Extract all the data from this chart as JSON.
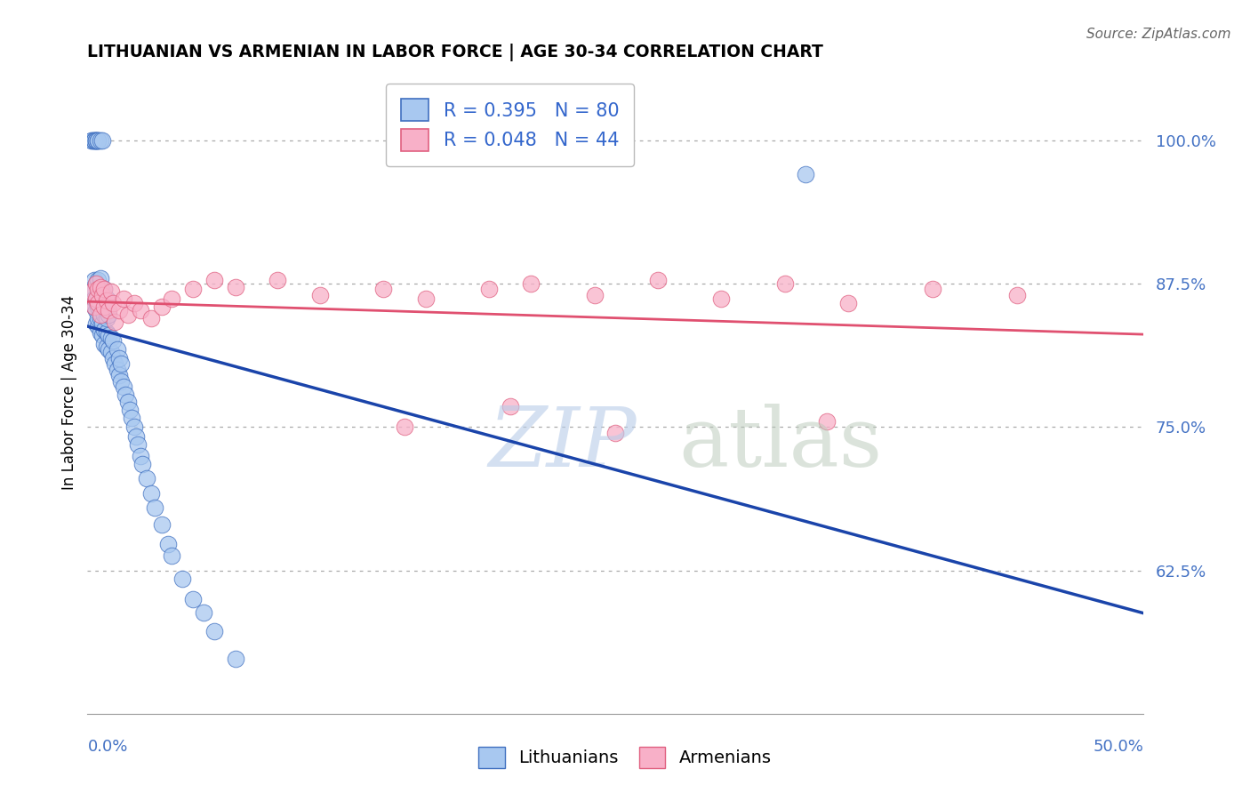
{
  "title": "LITHUANIAN VS ARMENIAN IN LABOR FORCE | AGE 30-34 CORRELATION CHART",
  "source": "Source: ZipAtlas.com",
  "ylabel": "In Labor Force | Age 30-34",
  "ytick_labels": [
    "62.5%",
    "75.0%",
    "87.5%",
    "100.0%"
  ],
  "ytick_values": [
    0.625,
    0.75,
    0.875,
    1.0
  ],
  "xlim": [
    0.0,
    0.5
  ],
  "ylim": [
    0.5,
    1.06
  ],
  "R_blue": 0.395,
  "N_blue": 80,
  "R_pink": 0.048,
  "N_pink": 44,
  "blue_scatter_color": "#a8c8f0",
  "blue_scatter_edge": "#4070c0",
  "pink_scatter_color": "#f8b0c8",
  "pink_scatter_edge": "#e06080",
  "blue_line_color": "#1a44aa",
  "pink_line_color": "#e05070",
  "lit_x": [
    0.002,
    0.003,
    0.003,
    0.003,
    0.004,
    0.004,
    0.004,
    0.004,
    0.005,
    0.005,
    0.005,
    0.005,
    0.005,
    0.006,
    0.006,
    0.006,
    0.006,
    0.006,
    0.007,
    0.007,
    0.007,
    0.007,
    0.008,
    0.008,
    0.008,
    0.008,
    0.008,
    0.009,
    0.009,
    0.009,
    0.009,
    0.01,
    0.01,
    0.01,
    0.011,
    0.011,
    0.012,
    0.012,
    0.013,
    0.014,
    0.014,
    0.015,
    0.015,
    0.016,
    0.016,
    0.017,
    0.018,
    0.019,
    0.02,
    0.021,
    0.022,
    0.023,
    0.024,
    0.025,
    0.026,
    0.028,
    0.03,
    0.032,
    0.035,
    0.038,
    0.04,
    0.045,
    0.05,
    0.055,
    0.06,
    0.07,
    0.002,
    0.002,
    0.003,
    0.003,
    0.003,
    0.004,
    0.004,
    0.004,
    0.005,
    0.005,
    0.005,
    0.006,
    0.007,
    0.34
  ],
  "lit_y": [
    0.87,
    0.855,
    0.862,
    0.878,
    0.84,
    0.852,
    0.86,
    0.875,
    0.838,
    0.845,
    0.855,
    0.865,
    0.878,
    0.832,
    0.845,
    0.858,
    0.868,
    0.88,
    0.83,
    0.84,
    0.852,
    0.868,
    0.822,
    0.835,
    0.848,
    0.858,
    0.87,
    0.82,
    0.832,
    0.845,
    0.862,
    0.818,
    0.83,
    0.848,
    0.815,
    0.828,
    0.81,
    0.825,
    0.805,
    0.8,
    0.818,
    0.795,
    0.81,
    0.79,
    0.805,
    0.785,
    0.778,
    0.772,
    0.765,
    0.758,
    0.75,
    0.742,
    0.735,
    0.725,
    0.718,
    0.705,
    0.692,
    0.68,
    0.665,
    0.648,
    0.638,
    0.618,
    0.6,
    0.588,
    0.572,
    0.548,
    1.0,
    1.0,
    1.0,
    1.0,
    1.0,
    1.0,
    1.0,
    1.0,
    1.0,
    1.0,
    1.0,
    1.0,
    1.0,
    0.97
  ],
  "arm_x": [
    0.002,
    0.003,
    0.004,
    0.004,
    0.005,
    0.005,
    0.006,
    0.006,
    0.007,
    0.008,
    0.008,
    0.009,
    0.01,
    0.011,
    0.012,
    0.013,
    0.015,
    0.017,
    0.019,
    0.022,
    0.025,
    0.03,
    0.035,
    0.04,
    0.05,
    0.06,
    0.07,
    0.09,
    0.11,
    0.14,
    0.16,
    0.19,
    0.21,
    0.24,
    0.27,
    0.3,
    0.33,
    0.36,
    0.4,
    0.44,
    0.15,
    0.2,
    0.25,
    0.35
  ],
  "arm_y": [
    0.868,
    0.855,
    0.875,
    0.862,
    0.87,
    0.858,
    0.872,
    0.848,
    0.865,
    0.855,
    0.87,
    0.86,
    0.852,
    0.868,
    0.858,
    0.842,
    0.852,
    0.862,
    0.848,
    0.858,
    0.852,
    0.845,
    0.855,
    0.862,
    0.87,
    0.878,
    0.872,
    0.878,
    0.865,
    0.87,
    0.862,
    0.87,
    0.875,
    0.865,
    0.878,
    0.862,
    0.875,
    0.858,
    0.87,
    0.865,
    0.75,
    0.768,
    0.745,
    0.755
  ]
}
